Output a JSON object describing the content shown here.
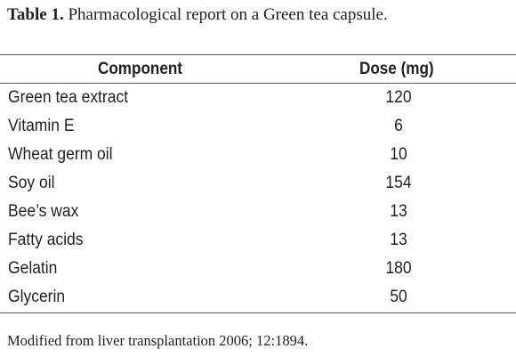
{
  "caption": {
    "label": "Table 1.",
    "text": " Pharmacological report on a Green tea capsule."
  },
  "table": {
    "headers": {
      "component": "Component",
      "dose": "Dose (mg)"
    },
    "rows": [
      {
        "component": "Green tea extract",
        "dose": "120"
      },
      {
        "component": "Vitamin E",
        "dose": "6"
      },
      {
        "component": "Wheat germ oil",
        "dose": "10"
      },
      {
        "component": "Soy oil",
        "dose": "154"
      },
      {
        "component": "Bee’s wax",
        "dose": "13"
      },
      {
        "component": "Fatty acids",
        "dose": "13"
      },
      {
        "component": "Gelatin",
        "dose": "180"
      },
      {
        "component": "Glycerin",
        "dose": "50"
      }
    ]
  },
  "footnote": "Modified from liver transplantation 2006; 12:1894."
}
